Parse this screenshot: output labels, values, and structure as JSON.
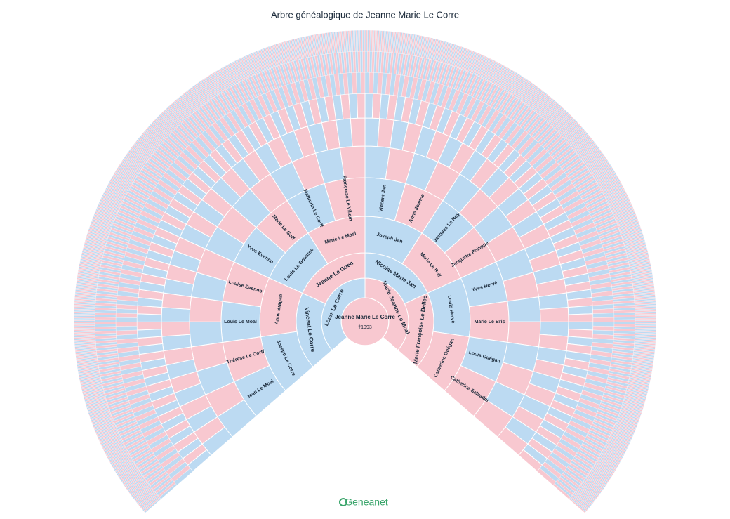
{
  "header": {
    "title": "Arbre généalogique de Jeanne Marie Le Corre"
  },
  "footer": {
    "brand": "Geneanet"
  },
  "generations": [
    [
      {
        "name": "Jeanne Marie Le Corre",
        "dates": "†1993"
      }
    ],
    [
      {
        "name": "Louis Le Corre"
      },
      {
        "name": "Marie Jeanne Le Moal"
      }
    ],
    [
      {
        "name": "Vincent Le Corre"
      },
      {
        "name": "Jeanne Le Guen"
      },
      {
        "name": "Nicolas Marie Jan"
      },
      {
        "name": "Marie Françoise Le Bellec"
      }
    ],
    [
      {
        "name": "Joseph Le Corre"
      },
      {
        "name": "Anne Bragan"
      },
      {
        "name": "Louis Le Gouarec"
      },
      {
        "name": "Marie Le Moal"
      },
      {
        "name": "Joseph Jan"
      },
      {
        "name": "Marie Le Roy"
      },
      {
        "name": "Louis Hervé"
      },
      {
        "name": "Catherine Guégan"
      }
    ],
    [
      {
        "name": "Jean Le Moal"
      },
      {
        "name": "Thérèse Le Corff"
      },
      {
        "name": "Louis Le Moal"
      },
      {
        "name": "Louise Evenno"
      },
      {
        "name": "Yves Evenno"
      },
      {
        "name": "Marie Le Goff"
      },
      {
        "name": "Mathurin Le Corff"
      },
      {
        "name": "Françoise Le Villain"
      },
      {
        "name": "Vincent Jan"
      },
      {
        "name": "Anne Joanne"
      },
      {
        "name": "Jacques Le Roy"
      },
      {
        "name": "Jacquette Philippe"
      },
      {
        "name": "Yves Hervé"
      },
      {
        "name": "Marie Le Bris"
      },
      {
        "name": "Louis Guégan"
      },
      {
        "name": "Catherine Salvador"
      }
    ]
  ]
}
